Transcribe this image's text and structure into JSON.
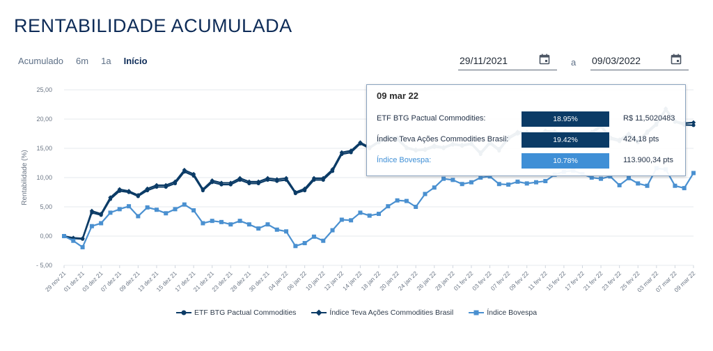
{
  "page": {
    "title": "RENTABILIDADE ACUMULADA"
  },
  "periods": [
    {
      "label": "Acumulado"
    },
    {
      "label": "6m"
    },
    {
      "label": "1a"
    },
    {
      "label": "Início"
    }
  ],
  "date_range": {
    "start": "29/11/2021",
    "separator": "a",
    "end": "09/03/2022"
  },
  "tooltip": {
    "date": "09 mar 22",
    "rows": [
      {
        "label": "ETF BTG Pactual Commodities:",
        "percent": "18.95%",
        "value": "R$ 11,5020483",
        "color": "#0b3b66"
      },
      {
        "label": "Índice Teva Ações Commodities Brasil:",
        "percent": "19.42%",
        "value": "424,18 pts",
        "color": "#0b3b66"
      },
      {
        "label": "Índice Bovespa:",
        "percent": "10.78%",
        "value": "113.900,34 pts",
        "color": "#3f8fd6"
      }
    ]
  },
  "legend": [
    {
      "label": "ETF BTG Pactual Commodities",
      "icon": "circle-marker-icon",
      "color": "#0b3b66"
    },
    {
      "label": "Índice Teva Ações Commodities Brasil",
      "icon": "diamond-marker-icon",
      "color": "#0b3b66"
    },
    {
      "label": "Índice Bovespa",
      "icon": "square-marker-icon",
      "color": "#4a90d0"
    }
  ],
  "chart_data": {
    "type": "line",
    "ylabel": "Rentabilidade (%)",
    "ylim": [
      -5,
      25
    ],
    "yticks": [
      "25,00",
      "20,00",
      "15,00",
      "10,00",
      "5,00",
      "0,00",
      "- 5,00"
    ],
    "ytick_values": [
      25,
      20,
      15,
      10,
      5,
      0,
      -5
    ],
    "grid": true,
    "legend_position": "bottom",
    "x_labels": [
      "29 nov 21",
      "01 dez 21",
      "03 dez 21",
      "07 dez 21",
      "09 dez 21",
      "13 dez 21",
      "15 dez 21",
      "17 dez 21",
      "21 dez 21",
      "23 dez 21",
      "28 dez 21",
      "30 dez 21",
      "04 jan 22",
      "06 jan 22",
      "10 jan 22",
      "12 jan 22",
      "14 jan 22",
      "18 jan 22",
      "20 jan 22",
      "24 jan 22",
      "26 jan 22",
      "28 jan 22",
      "01 fev 22",
      "03 fev 22",
      "07 fev 22",
      "09 fev 22",
      "11 fev 22",
      "15 fev 22",
      "17 fev 22",
      "21 fev 22",
      "23 fev 22",
      "25 fev 22",
      "03 mar 22",
      "07 mar 22",
      "09 mar 22"
    ],
    "series": [
      {
        "name": "ETF BTG Pactual Commodities",
        "color": "#0b3b66",
        "marker": "circle",
        "values": [
          0,
          -0.4,
          -0.5,
          4.0,
          3.6,
          6.3,
          7.7,
          7.5,
          6.8,
          7.8,
          8.4,
          8.4,
          9.0,
          11.0,
          10.3,
          7.8,
          9.2,
          8.8,
          8.8,
          9.6,
          9.0,
          9.0,
          9.6,
          9.4,
          9.6,
          7.3,
          7.8,
          9.6,
          9.6,
          11.1,
          14.0,
          14.3,
          15.8,
          15.0,
          16.0,
          16.8,
          16.5,
          15.0,
          14.6,
          14.7,
          15.2,
          15.0,
          15.6,
          15.4,
          15.7,
          14.0,
          15.8,
          14.6,
          16.6,
          17.5,
          17.5,
          17.0,
          17.8,
          17.6,
          17.3,
          16.4,
          17.0,
          17.5,
          18.7,
          16.6,
          16.2,
          17.2,
          16.0,
          17.6,
          19.0,
          21.5,
          19.5,
          19.0,
          18.95
        ]
      },
      {
        "name": "Índice Teva Ações Commodities Brasil",
        "color": "#0b3b66",
        "marker": "diamond",
        "values": [
          0,
          -0.3,
          -0.4,
          4.3,
          3.8,
          6.6,
          8.0,
          7.7,
          7.0,
          8.1,
          8.7,
          8.7,
          9.3,
          11.3,
          10.6,
          8.0,
          9.5,
          9.1,
          9.1,
          9.9,
          9.3,
          9.3,
          9.9,
          9.7,
          9.9,
          7.5,
          8.1,
          9.9,
          9.9,
          11.4,
          14.3,
          14.6,
          16.0,
          15.2,
          16.2,
          17.0,
          16.8,
          15.2,
          14.8,
          14.9,
          15.5,
          15.2,
          15.8,
          15.6,
          15.9,
          14.3,
          16.1,
          14.9,
          16.9,
          17.8,
          17.8,
          17.2,
          18.0,
          17.9,
          17.5,
          16.6,
          17.3,
          17.8,
          19.0,
          16.9,
          16.5,
          17.5,
          16.3,
          17.9,
          19.3,
          21.8,
          19.7,
          19.3,
          19.42
        ]
      },
      {
        "name": "Índice Bovespa",
        "color": "#4a90d0",
        "marker": "square",
        "values": [
          0,
          -0.8,
          -1.9,
          1.7,
          2.2,
          4.0,
          4.6,
          5.1,
          3.4,
          4.9,
          4.5,
          3.9,
          4.6,
          5.4,
          4.4,
          2.2,
          2.6,
          2.4,
          2.0,
          2.6,
          2.0,
          1.3,
          2.0,
          1.1,
          0.8,
          -1.7,
          -1.2,
          -0.1,
          -0.8,
          1.0,
          2.8,
          2.7,
          4.0,
          3.5,
          3.8,
          5.1,
          6.1,
          6.0,
          5.0,
          7.2,
          8.3,
          9.8,
          9.6,
          8.9,
          9.2,
          10.0,
          10.2,
          8.9,
          8.8,
          9.3,
          9.0,
          9.2,
          9.4,
          10.5,
          11.0,
          11.2,
          10.6,
          10.0,
          9.8,
          10.2,
          8.7,
          9.9,
          9.0,
          8.6,
          11.6,
          11.4,
          8.6,
          8.2,
          10.78
        ]
      }
    ]
  }
}
